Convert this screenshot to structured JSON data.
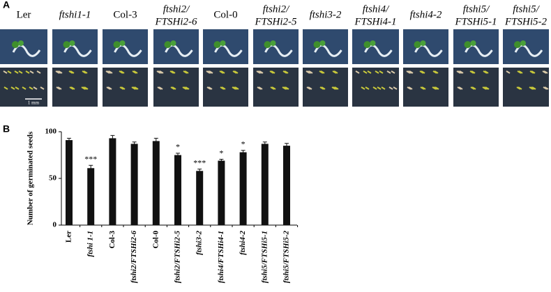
{
  "panel_a": {
    "label": "A",
    "genotypes": [
      [
        "Ler"
      ],
      [
        "ftshi1-1"
      ],
      [
        "Col-3"
      ],
      [
        "ftshi2/",
        "FTSHi2-6"
      ],
      [
        "Col-0"
      ],
      [
        "ftshi2/",
        "FTSHi2-5"
      ],
      [
        "ftshi3-2"
      ],
      [
        "ftshi4/",
        "FTSHi4-1"
      ],
      [
        "ftshi4-2"
      ],
      [
        "ftshi5/",
        "FTSHi5-1"
      ],
      [
        "ftshi5/",
        "FTSHi5-2"
      ]
    ],
    "scale_bar": "1 mm"
  },
  "chart_data": {
    "type": "bar",
    "panel_label": "B",
    "y_label": "Number of germinated seeds",
    "categories": [
      "Ler",
      "ftshi 1-1",
      "Col-3",
      "ftshi2/FTSHi2-6",
      "Col-0",
      "ftshi2/FTSHi2-5",
      "ftshi3-2",
      "ftshi4/FTSHi4-1",
      "ftshi4-2",
      "ftshi5/FTSHi5-1",
      "ftshi5/FTSHi5-2"
    ],
    "values": [
      91,
      61,
      93,
      87,
      90,
      75,
      58,
      69,
      78,
      87,
      85
    ],
    "errors": [
      2,
      3,
      3,
      2,
      3,
      2,
      2,
      1.5,
      2,
      2,
      2.5
    ],
    "significance": [
      null,
      "***",
      null,
      null,
      null,
      "*",
      "***",
      "*",
      "*",
      null,
      null
    ],
    "color": "#111111",
    "ylim": [
      0,
      100
    ],
    "yticks": [
      0,
      50,
      100
    ]
  }
}
